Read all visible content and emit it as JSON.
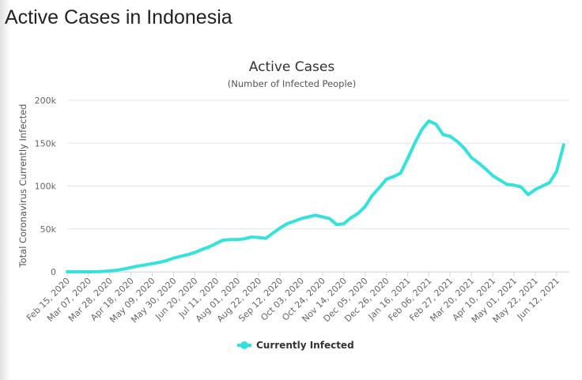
{
  "page_title": "Active Cases in Indonesia",
  "chart_data": {
    "type": "line",
    "title": "Active Cases",
    "subtitle": "(Number of Infected People)",
    "y_label": "Total Coronavirus Currently Infected",
    "x": [
      "Feb 15, 2020",
      "Feb 22, 2020",
      "Feb 29, 2020",
      "Mar 07, 2020",
      "Mar 14, 2020",
      "Mar 21, 2020",
      "Mar 28, 2020",
      "Apr 04, 2020",
      "Apr 11, 2020",
      "Apr 18, 2020",
      "Apr 25, 2020",
      "May 02, 2020",
      "May 09, 2020",
      "May 16, 2020",
      "May 23, 2020",
      "May 30, 2020",
      "Jun 06, 2020",
      "Jun 13, 2020",
      "Jun 20, 2020",
      "Jun 27, 2020",
      "Jul 04, 2020",
      "Jul 11, 2020",
      "Jul 18, 2020",
      "Jul 25, 2020",
      "Aug 01, 2020",
      "Aug 08, 2020",
      "Aug 15, 2020",
      "Aug 22, 2020",
      "Aug 29, 2020",
      "Sep 05, 2020",
      "Sep 12, 2020",
      "Sep 19, 2020",
      "Sep 26, 2020",
      "Oct 03, 2020",
      "Oct 10, 2020",
      "Oct 17, 2020",
      "Oct 24, 2020",
      "Oct 31, 2020",
      "Nov 07, 2020",
      "Nov 14, 2020",
      "Nov 21, 2020",
      "Nov 28, 2020",
      "Dec 05, 2020",
      "Dec 12, 2020",
      "Dec 19, 2020",
      "Dec 26, 2020",
      "Jan 02, 2021",
      "Jan 09, 2021",
      "Jan 16, 2021",
      "Jan 23, 2021",
      "Jan 30, 2021",
      "Feb 06, 2021",
      "Feb 13, 2021",
      "Feb 20, 2021",
      "Feb 27, 2021",
      "Mar 06, 2021",
      "Mar 13, 2021",
      "Mar 20, 2021",
      "Mar 27, 2021",
      "Apr 03, 2021",
      "Apr 10, 2021",
      "Apr 17, 2021",
      "Apr 24, 2021",
      "May 01, 2021",
      "May 08, 2021",
      "May 15, 2021",
      "May 22, 2021",
      "May 29, 2021",
      "Jun 05, 2021",
      "Jun 12, 2021",
      "Jun 19, 2021"
    ],
    "xticks": [
      "Feb 15, 2020",
      "Mar 07, 2020",
      "Mar 28, 2020",
      "Apr 18, 2020",
      "May 09, 2020",
      "May 30, 2020",
      "Jun 20, 2020",
      "Jul 11, 2020",
      "Aug 01, 2020",
      "Aug 22, 2020",
      "Sep 12, 2020",
      "Oct 03, 2020",
      "Oct 24, 2020",
      "Nov 14, 2020",
      "Dec 05, 2020",
      "Dec 26, 2020",
      "Jan 16, 2021",
      "Feb 06, 2021",
      "Feb 27, 2021",
      "Mar 20, 2021",
      "Apr 10, 2021",
      "May 01, 2021",
      "May 22, 2021",
      "Jun 12, 2021"
    ],
    "series": [
      {
        "name": "Currently Infected",
        "color": "#33e2dc",
        "values": [
          0,
          0,
          0,
          4,
          90,
          400,
          1000,
          1800,
          3300,
          5000,
          6700,
          8000,
          9500,
          11000,
          13000,
          16000,
          18000,
          20000,
          22500,
          26000,
          29000,
          33000,
          37000,
          37500,
          37500,
          38500,
          40500,
          40000,
          39000,
          45000,
          51000,
          56000,
          59000,
          62000,
          64000,
          66000,
          64000,
          62000,
          55000,
          56000,
          63000,
          68000,
          76000,
          89000,
          98000,
          108000,
          111000,
          115000,
          132000,
          150000,
          166000,
          176000,
          172000,
          160000,
          158000,
          152000,
          144000,
          133000,
          127000,
          120000,
          112000,
          107000,
          102000,
          101000,
          99000,
          90000,
          96000,
          100000,
          104000,
          117000,
          148000
        ]
      }
    ],
    "ylim": [
      0,
      200000
    ],
    "yticks": [
      0,
      {
        "value": 50000,
        "label": "50k"
      },
      {
        "value": 100000,
        "label": "100k"
      },
      {
        "value": 150000,
        "label": "150k"
      },
      {
        "value": 200000,
        "label": "200k"
      }
    ],
    "grid": true
  }
}
